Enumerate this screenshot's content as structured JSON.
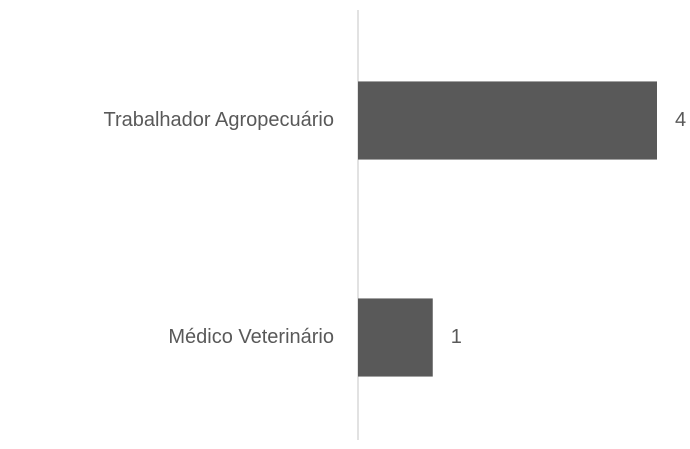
{
  "chart_data": {
    "type": "hbar",
    "categories": [
      "Trabalhador Agropecuário",
      "Médico Veterinário"
    ],
    "values": [
      4,
      1
    ],
    "color": "#595959"
  }
}
